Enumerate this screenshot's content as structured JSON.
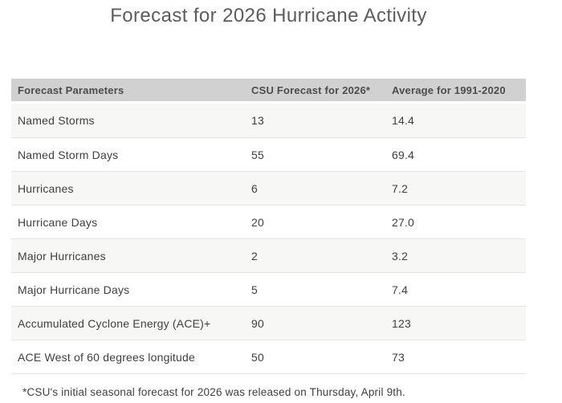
{
  "title": "Forecast for 2026 Hurricane Activity",
  "footnote": "*CSU's initial seasonal forecast for 2026 was released on Thursday, April 9th.",
  "table": {
    "columns": [
      "Forecast Parameters",
      "CSU Forecast for 2026*",
      "Average for 1991-2020"
    ],
    "rows": [
      {
        "parameter": "Named Storms",
        "csu_forecast": "13",
        "average": "14.4"
      },
      {
        "parameter": "Named Storm Days",
        "csu_forecast": "55",
        "average": "69.4"
      },
      {
        "parameter": "Hurricanes",
        "csu_forecast": "6",
        "average": "7.2"
      },
      {
        "parameter": "Hurricane Days",
        "csu_forecast": "20",
        "average": "27.0"
      },
      {
        "parameter": "Major Hurricanes",
        "csu_forecast": "2",
        "average": "3.2"
      },
      {
        "parameter": "Major Hurricane Days",
        "csu_forecast": "5",
        "average": "7.4"
      },
      {
        "parameter": "Accumulated Cyclone Energy (ACE)+",
        "csu_forecast": "90",
        "average": "123"
      },
      {
        "parameter": "ACE West of 60 degrees longitude",
        "csu_forecast": "50",
        "average": "73"
      }
    ]
  },
  "colors": {
    "page_bg": "#ffffff",
    "header_bg": "#d1d1d1",
    "header_text": "#4c4c4c",
    "body_text": "#3f3f3f",
    "title_text": "#5b5c5e",
    "row_bg": "#ffffff",
    "row_alt_bg": "#f7f7f6",
    "row_border": "#e4e4e4"
  },
  "chart_data": {
    "type": "table",
    "title": "Forecast for 2026 Hurricane Activity",
    "columns": [
      "Forecast Parameters",
      "CSU Forecast for 2026*",
      "Average for 1991-2020"
    ],
    "rows": [
      [
        "Named Storms",
        13,
        14.4
      ],
      [
        "Named Storm Days",
        55,
        69.4
      ],
      [
        "Hurricanes",
        6,
        7.2
      ],
      [
        "Hurricane Days",
        20,
        27.0
      ],
      [
        "Major Hurricanes",
        2,
        3.2
      ],
      [
        "Major Hurricane Days",
        5,
        7.4
      ],
      [
        "Accumulated Cyclone Energy (ACE)+",
        90,
        123
      ],
      [
        "ACE West of 60 degrees longitude",
        50,
        73
      ]
    ],
    "footnote": "*CSU's initial seasonal forecast for 2026 was released on Thursday, April 9th."
  }
}
